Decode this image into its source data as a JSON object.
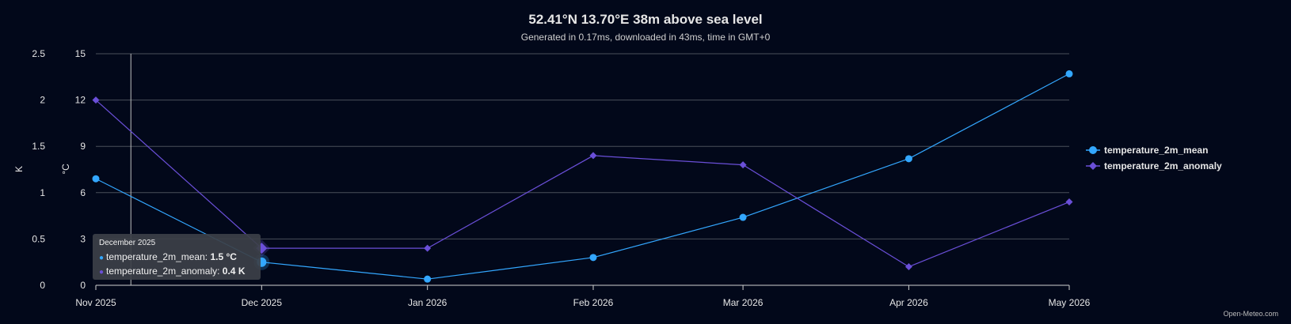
{
  "header": {
    "title": "52.41°N 13.70°E 38m above sea level",
    "subtitle": "Generated in 0.17ms, downloaded in 43ms, time in GMT+0"
  },
  "credit": "Open-Meteo.com",
  "tooltip": {
    "heading": "December 2025",
    "rows": [
      {
        "name": "temperature_2m_mean",
        "value": "1.5 °C",
        "color": "#33a7ff"
      },
      {
        "name": "temperature_2m_anomaly",
        "value": "0.4 K",
        "color": "#6a4fd8"
      }
    ]
  },
  "chart_data": {
    "type": "line",
    "title": "52.41°N 13.70°E 38m above sea level",
    "subtitle": "Generated in 0.17ms, downloaded in 43ms, time in GMT+0",
    "x": [
      "2025-10-31",
      "2025-12-01",
      "2026-01-01",
      "2026-02-01",
      "2026-03-01",
      "2026-04-01",
      "2026-05-01"
    ],
    "x_ticks": [
      "Nov 2025",
      "Dec 2025",
      "Jan 2026",
      "Feb 2026",
      "Mar 2026",
      "Apr 2026",
      "May 2026"
    ],
    "y_axes": [
      {
        "label": "°C",
        "ylim": [
          0,
          15
        ],
        "ticks": [
          "0",
          "3",
          "6",
          "9",
          "12",
          "15"
        ]
      },
      {
        "label": "K",
        "ylim": [
          0,
          2.5
        ],
        "ticks": [
          "0",
          "0.5",
          "1",
          "1.5",
          "2",
          "2.5"
        ]
      }
    ],
    "series": [
      {
        "name": "temperature_2m_mean",
        "axis": 0,
        "unit": "°C",
        "color": "#33a7ff",
        "marker": "circle",
        "values": [
          6.9,
          1.5,
          0.4,
          1.8,
          4.4,
          8.2,
          13.7
        ]
      },
      {
        "name": "temperature_2m_anomaly",
        "axis": 1,
        "unit": "K",
        "color": "#6a4fd8",
        "marker": "diamond",
        "values": [
          2.0,
          0.4,
          0.4,
          1.4,
          1.3,
          0.2,
          0.9
        ]
      }
    ],
    "highlighted_x": "2025-12-01",
    "grid": true,
    "legend": "right"
  }
}
